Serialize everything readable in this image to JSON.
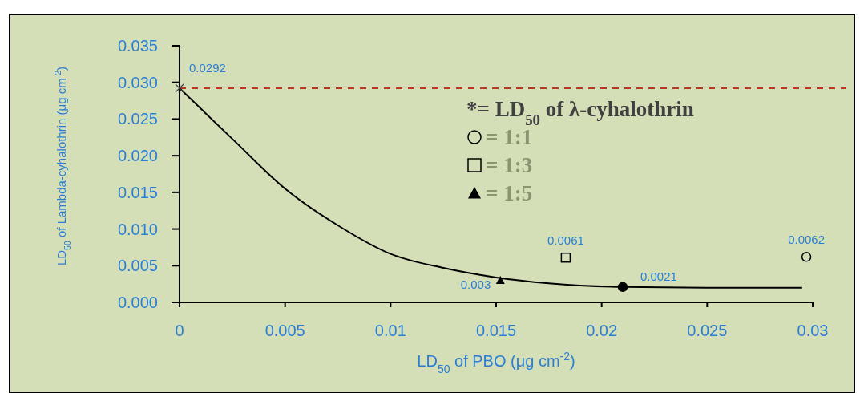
{
  "chart_data": {
    "type": "scatter",
    "xlabel": "LD$_{50}$ of PBO (μg cm$^{-2}$)",
    "ylabel": "LD$_{50}$ of Lambda-cyhalothrin (μg cm$^{-2}$)",
    "xlim": [
      0,
      0.03
    ],
    "xticks": [
      0,
      0.005,
      0.01,
      0.015,
      0.02,
      0.025,
      0.03
    ],
    "ylim": [
      0,
      0.035
    ],
    "yticks": [
      {
        "value": 0,
        "label": "0.000"
      },
      {
        "value": 0.005,
        "label": "0.005"
      },
      {
        "value": 0.01,
        "label": "0.010"
      },
      {
        "value": 0.015,
        "label": "0.015"
      },
      {
        "value": 0.02,
        "label": "0.020"
      },
      {
        "value": 0.025,
        "label": "0.025"
      },
      {
        "value": 0.03,
        "label": "0.030"
      },
      {
        "value": 0.035,
        "label": "0.035"
      }
    ],
    "grid": false,
    "legend": "top right",
    "series": [
      {
        "type": "line",
        "color": "#000000",
        "marker": "none",
        "line_style": "solid",
        "x": [
          0,
          0.0025,
          0.005,
          0.0075,
          0.01,
          0.0125,
          0.015,
          0.0175,
          0.021,
          0.025,
          0.0295
        ],
        "values": [
          0.0292,
          0.0223,
          0.0155,
          0.0105,
          0.0066,
          0.0047,
          0.0034,
          0.0026,
          0.0021,
          0.002,
          0.002
        ]
      },
      {
        "name": "*= LD$_{50}$ of λ-cyhalothrin",
        "color": "#404040",
        "marker": "cross",
        "x": [
          0
        ],
        "values": [
          0.0292
        ],
        "value_labels": [
          "0.0292"
        ]
      },
      {
        "name": "= 1:1",
        "color": "#000000",
        "marker": "circle",
        "x": [
          0.0297
        ],
        "values": [
          0.0062
        ],
        "value_labels": [
          "0.0062"
        ]
      },
      {
        "name": "= 1:3",
        "color": "#000000",
        "marker": "square",
        "x": [
          0.0183
        ],
        "values": [
          0.0061
        ],
        "value_labels": [
          "0.0061"
        ]
      },
      {
        "name": "= 1:5",
        "color": "#000000",
        "marker": "triangle",
        "x": [
          0.0152
        ],
        "values": [
          0.003
        ],
        "value_labels": [
          "0.003"
        ]
      },
      {
        "color": "#000000",
        "marker": "circle",
        "x": [
          0.021
        ],
        "values": [
          0.0021
        ],
        "value_labels": [
          "0.0021"
        ]
      }
    ],
    "ref_lines": [
      {
        "axis": "y",
        "value": 0.0292,
        "color": "#b5381c",
        "line_style": "dashed"
      }
    ]
  }
}
